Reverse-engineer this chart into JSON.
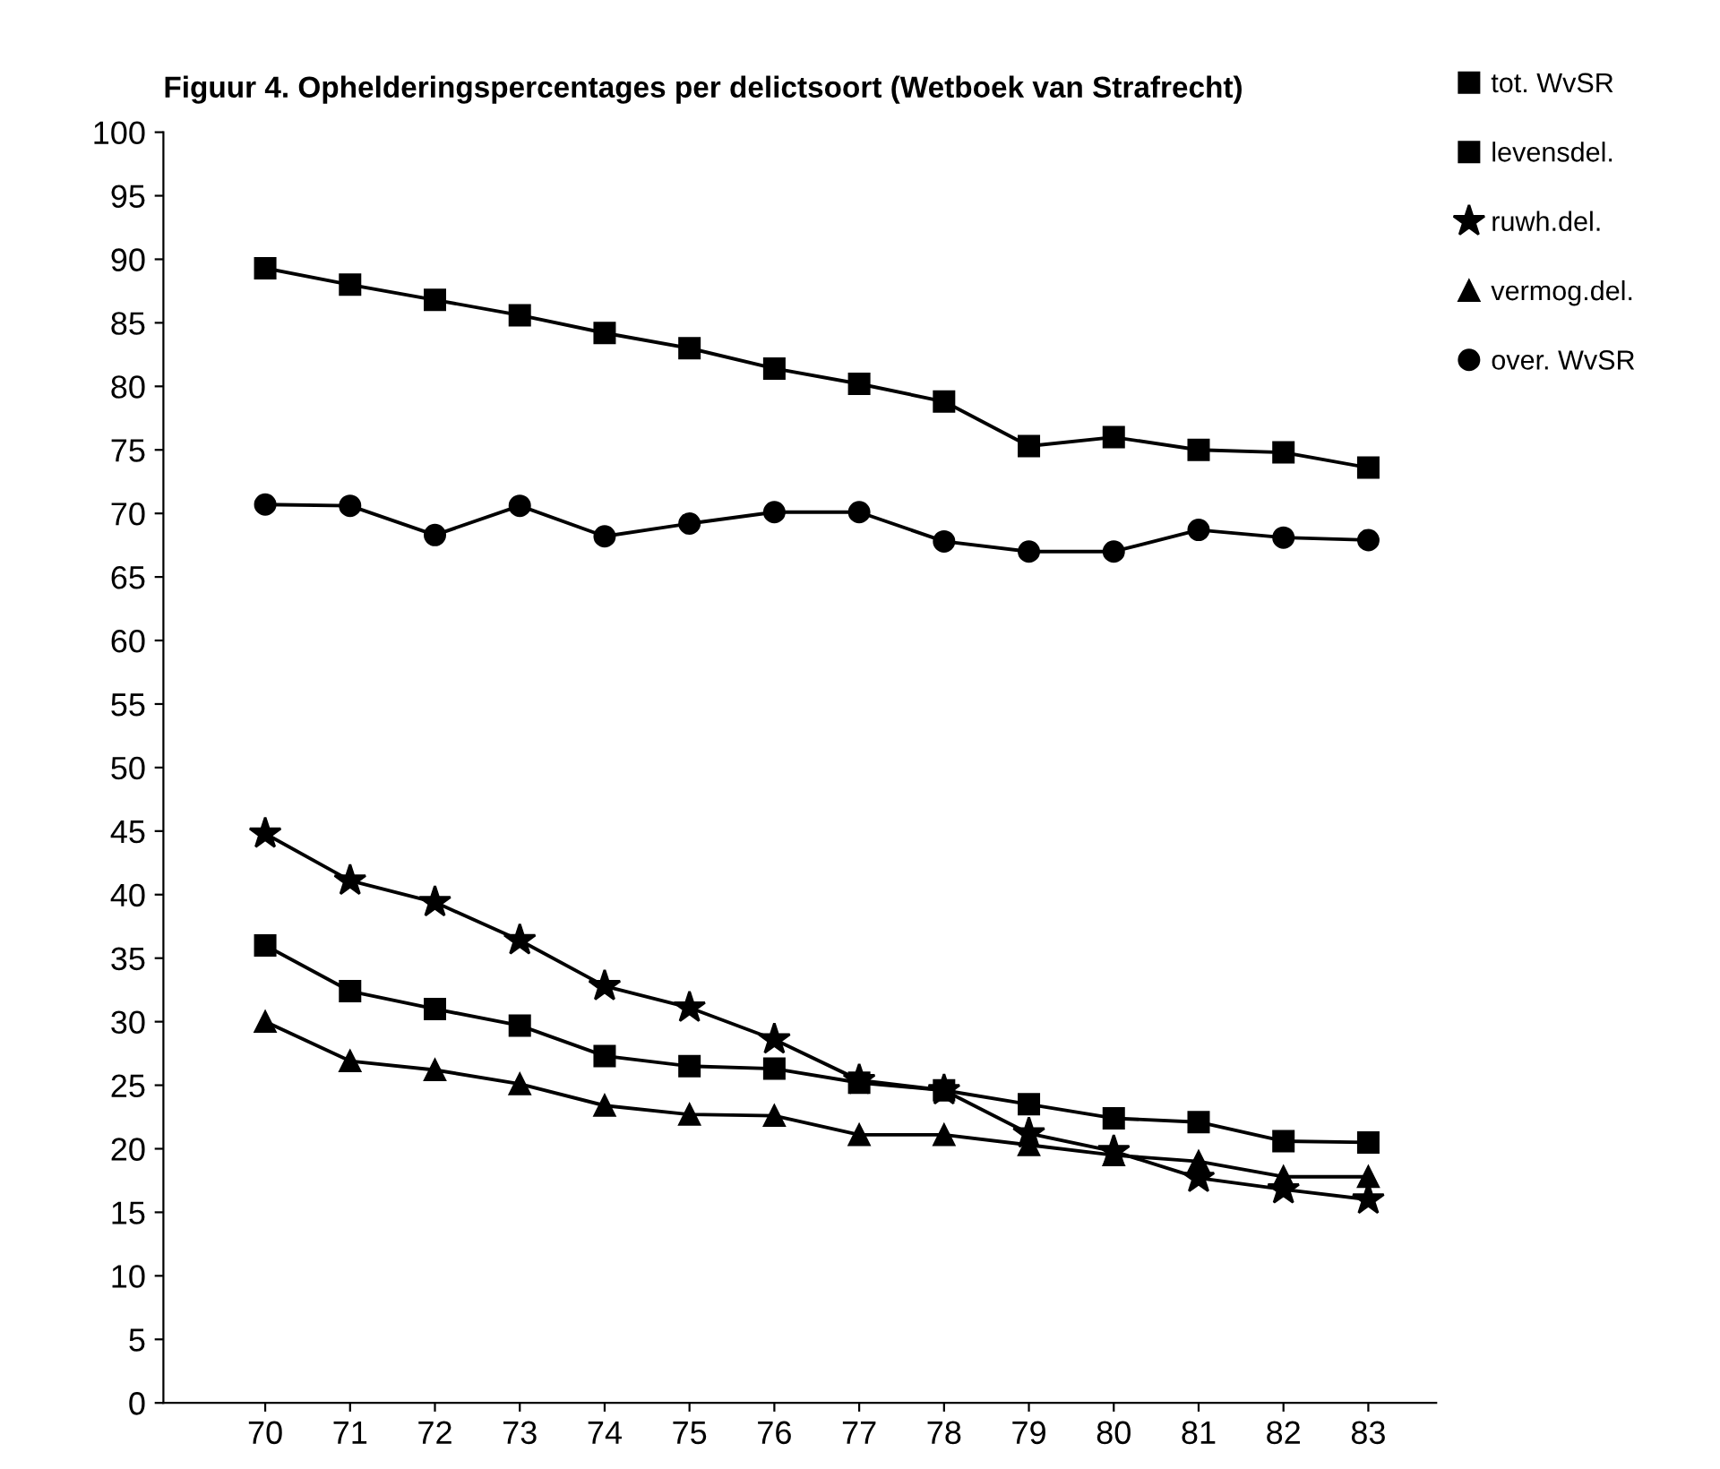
{
  "chart_data": {
    "type": "line",
    "title": "Figuur 4. Ophelderingspercentages per delictsoort (Wetboek van Strafrecht)",
    "categories": [
      "70",
      "71",
      "72",
      "73",
      "74",
      "75",
      "76",
      "77",
      "78",
      "79",
      "80",
      "81",
      "82",
      "83"
    ],
    "series": [
      {
        "name": "tot. WvSR",
        "color": "#000000",
        "marker": "square",
        "values": [
          36,
          32.4,
          31,
          29.7,
          27.3,
          26.5,
          26.3,
          25.2,
          24.6,
          23.5,
          22.4,
          22.1,
          20.6,
          20.5
        ]
      },
      {
        "name": "levensdel.",
        "color": "#000000",
        "marker": "square",
        "values": [
          89.3,
          88,
          86.8,
          85.6,
          84.2,
          83,
          81.4,
          80.2,
          78.8,
          75.3,
          76,
          75,
          74.8,
          73.6
        ]
      },
      {
        "name": "ruwh.del.",
        "color": "#000000",
        "marker": "star",
        "values": [
          44.8,
          41.1,
          39.4,
          36.4,
          32.8,
          31.1,
          28.6,
          25.4,
          24.6,
          21.2,
          19.8,
          17.7,
          16.8,
          16
        ]
      },
      {
        "name": "vermog.del.",
        "color": "#000000",
        "marker": "triangle",
        "values": [
          30,
          26.9,
          26.2,
          25.1,
          23.4,
          22.7,
          22.6,
          21.1,
          21.1,
          20.3,
          19.5,
          19,
          17.8,
          17.8
        ]
      },
      {
        "name": "over. WvSR",
        "color": "#000000",
        "marker": "circle",
        "values": [
          70.7,
          70.6,
          68.3,
          70.6,
          68.2,
          69.2,
          70.1,
          70.1,
          67.8,
          67,
          67,
          68.7,
          68.1,
          67.9
        ]
      }
    ],
    "ylim": [
      0,
      100
    ],
    "yticks": [
      0,
      5,
      10,
      15,
      20,
      25,
      30,
      35,
      40,
      45,
      50,
      55,
      60,
      65,
      70,
      75,
      80,
      85,
      90,
      95,
      100
    ],
    "legend": "top right",
    "grid": false,
    "line_style": "solid"
  }
}
